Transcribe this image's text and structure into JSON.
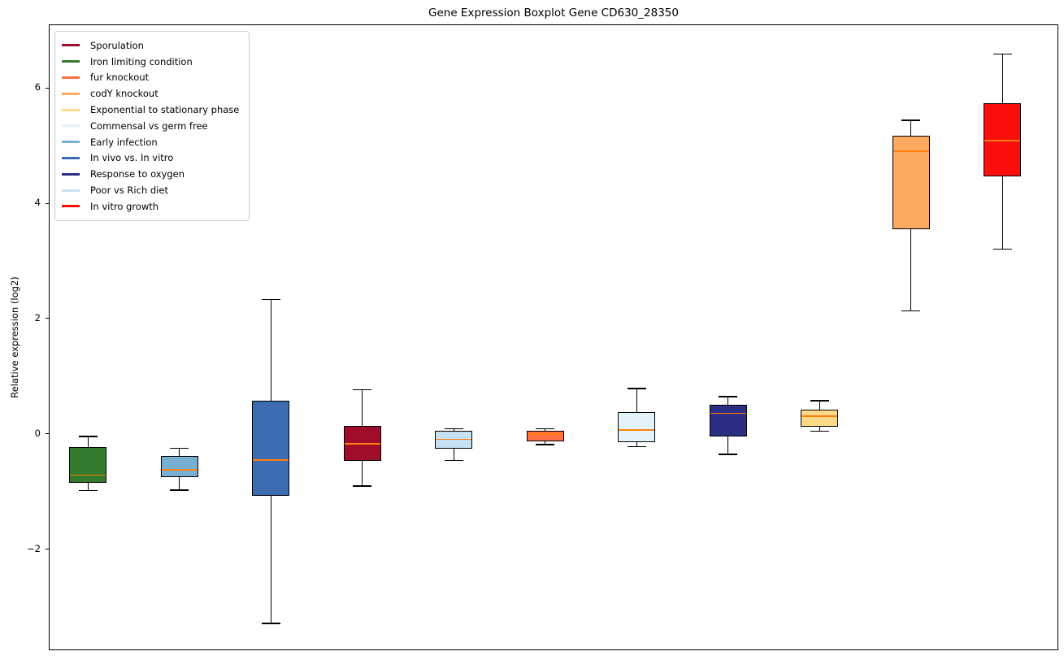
{
  "chart_data": {
    "type": "boxplot",
    "title": "Gene Expression Boxplot Gene CD630_28350",
    "xlabel": "",
    "ylabel": "Relative expression (log2)",
    "ylim": [
      -3.75,
      7.1
    ],
    "xlim": [
      0.58,
      11.62
    ],
    "yticks": [
      -2,
      0,
      2,
      4,
      6
    ],
    "grid": false,
    "legend_position": "upper left",
    "median_color": "#ff7f0e",
    "box_edge_color": "#000000",
    "legend": [
      {
        "label": "Sporulation",
        "color": "#a00d2b"
      },
      {
        "label": "Iron limiting condition",
        "color": "#347a2f"
      },
      {
        "label": "fur knockout",
        "color": "#fd6e45"
      },
      {
        "label": "codY knockout",
        "color": "#fbaa60"
      },
      {
        "label": "Exponential to stationary phase",
        "color": "#fcd889"
      },
      {
        "label": "Commensal vs germ free",
        "color": "#e2f3fb"
      },
      {
        "label": "Early infection",
        "color": "#78b0d4"
      },
      {
        "label": "In vivo vs. In vitro",
        "color": "#3d6cb3"
      },
      {
        "label": "Response to oxygen",
        "color": "#2c2e83"
      },
      {
        "label": "Poor vs Rich diet",
        "color": "#c6e1f2"
      },
      {
        "label": "In vitro growth",
        "color": "#fb0f0c"
      }
    ],
    "series": [
      {
        "name": "Iron limiting condition",
        "color": "#347a2f",
        "whisker_low": -0.97,
        "q1": -0.83,
        "median": -0.7,
        "q3": -0.21,
        "whisker_high": -0.03
      },
      {
        "name": "Early infection",
        "color": "#78b0d4",
        "whisker_low": -0.96,
        "q1": -0.73,
        "median": -0.61,
        "q3": -0.37,
        "whisker_high": -0.24
      },
      {
        "name": "In vivo vs. In vitro",
        "color": "#3d6cb3",
        "whisker_low": -3.27,
        "q1": -1.06,
        "median": -0.44,
        "q3": 0.59,
        "whisker_high": 2.34
      },
      {
        "name": "Sporulation",
        "color": "#a00d2b",
        "whisker_low": -0.89,
        "q1": -0.45,
        "median": -0.16,
        "q3": 0.16,
        "whisker_high": 0.78
      },
      {
        "name": "Poor vs Rich diet",
        "color": "#c6e1f2",
        "whisker_low": -0.45,
        "q1": -0.24,
        "median": -0.08,
        "q3": 0.07,
        "whisker_high": 0.1
      },
      {
        "name": "fur knockout",
        "color": "#fd6e45",
        "whisker_low": -0.17,
        "q1": -0.11,
        "median": 0.01,
        "q3": 0.07,
        "whisker_high": 0.1
      },
      {
        "name": "Commensal vs germ free",
        "color": "#e2f3fb",
        "whisker_low": -0.21,
        "q1": -0.13,
        "median": 0.08,
        "q3": 0.39,
        "whisker_high": 0.8
      },
      {
        "name": "Response to oxygen",
        "color": "#2c2e83",
        "whisker_low": -0.34,
        "q1": -0.03,
        "median": 0.37,
        "q3": 0.52,
        "whisker_high": 0.66
      },
      {
        "name": "Exponential to stationary phase",
        "color": "#fcd889",
        "whisker_low": 0.06,
        "q1": 0.14,
        "median": 0.32,
        "q3": 0.44,
        "whisker_high": 0.59
      },
      {
        "name": "codY knockout",
        "color": "#fbaa60",
        "whisker_low": 2.15,
        "q1": 3.56,
        "median": 4.92,
        "q3": 5.18,
        "whisker_high": 5.45
      },
      {
        "name": "In vitro growth",
        "color": "#fb0f0c",
        "whisker_low": 3.22,
        "q1": 4.48,
        "median": 5.1,
        "q3": 5.75,
        "whisker_high": 6.6
      }
    ]
  }
}
